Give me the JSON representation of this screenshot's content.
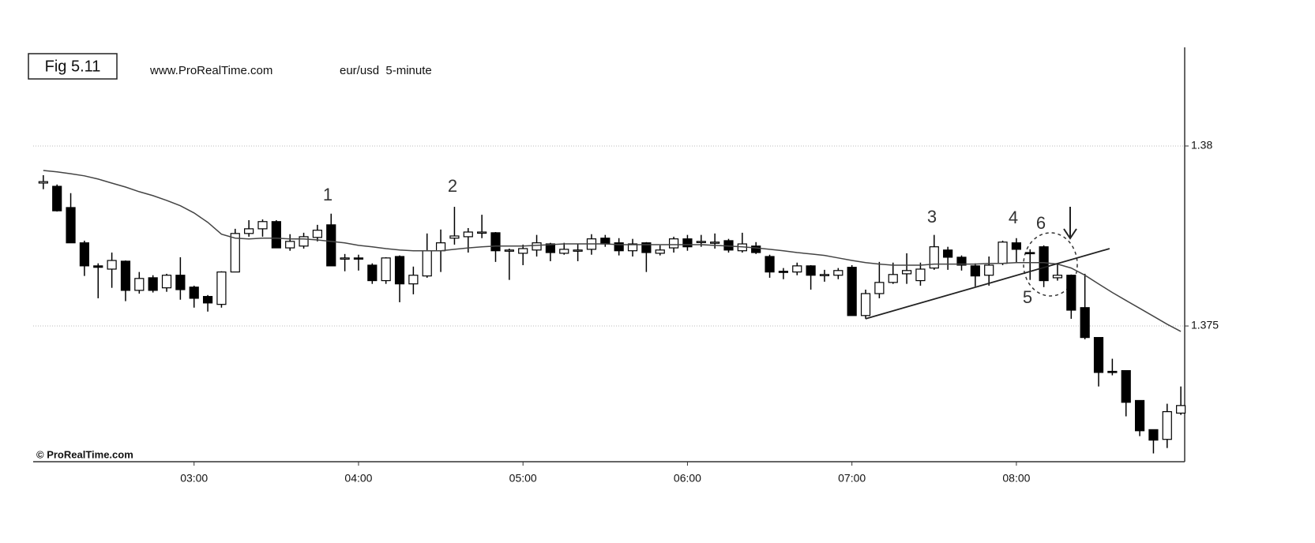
{
  "chart_data": {
    "type": "candlestick",
    "figure_label": "Fig 5.11",
    "source": "www.ProRealTime.com",
    "title": "eur/usd  5-minute",
    "copyright": "© ProRealTime.com",
    "x": [
      125,
      130,
      135,
      140,
      145,
      150,
      155,
      160,
      165,
      170,
      175,
      180,
      185,
      190,
      195,
      200,
      205,
      210,
      215,
      220,
      225,
      230,
      235,
      240,
      245,
      250,
      255,
      260,
      265,
      270,
      275,
      280,
      285,
      290,
      295,
      300,
      305,
      310,
      315,
      320,
      325,
      330,
      335,
      340,
      345,
      350,
      355,
      360,
      365,
      370,
      375,
      380,
      385,
      390,
      395,
      400,
      405,
      410,
      415,
      420,
      425,
      430,
      435,
      440,
      445,
      450,
      455,
      460,
      465,
      470,
      475,
      480,
      485,
      490,
      495,
      500,
      505,
      510,
      515,
      520,
      525,
      530,
      535,
      540
    ],
    "open": [
      1.37897,
      1.37888,
      1.37829,
      1.37731,
      1.37667,
      1.37658,
      1.3768,
      1.37599,
      1.37634,
      1.37606,
      1.37641,
      1.37608,
      1.37582,
      1.3756,
      1.3765,
      1.37757,
      1.3777,
      1.3779,
      1.37717,
      1.37722,
      1.37746,
      1.37781,
      1.37687,
      1.37689,
      1.37669,
      1.37626,
      1.37693,
      1.37617,
      1.37639,
      1.37709,
      1.37744,
      1.37748,
      1.37759,
      1.37759,
      1.37709,
      1.37702,
      1.37711,
      1.37728,
      1.37702,
      1.37709,
      1.37713,
      1.37744,
      1.37731,
      1.37709,
      1.37731,
      1.37702,
      1.37717,
      1.37742,
      1.37733,
      1.37731,
      1.37737,
      1.37709,
      1.37722,
      1.37693,
      1.37652,
      1.3765,
      1.37667,
      1.37641,
      1.37641,
      1.37663,
      1.37529,
      1.3759,
      1.37621,
      1.37645,
      1.37626,
      1.37661,
      1.37711,
      1.37691,
      1.37667,
      1.37641,
      1.37674,
      1.37731,
      1.37704,
      1.3772,
      1.37634,
      1.37641,
      1.37551,
      1.37468,
      1.37374,
      1.37376,
      1.37293,
      1.37212,
      1.37185,
      1.37258
    ],
    "high": [
      1.37919,
      1.37893,
      1.37869,
      1.37737,
      1.37674,
      1.37704,
      1.37682,
      1.3765,
      1.37641,
      1.37645,
      1.37691,
      1.37612,
      1.37586,
      1.37652,
      1.3777,
      1.37794,
      1.37796,
      1.37794,
      1.37755,
      1.37759,
      1.37781,
      1.37812,
      1.377,
      1.37698,
      1.37674,
      1.37691,
      1.37696,
      1.37665,
      1.37757,
      1.37768,
      1.37831,
      1.37772,
      1.37809,
      1.37761,
      1.37715,
      1.37726,
      1.37753,
      1.37731,
      1.37731,
      1.37728,
      1.37755,
      1.37753,
      1.37744,
      1.37742,
      1.37733,
      1.37724,
      1.37748,
      1.37753,
      1.37753,
      1.37757,
      1.37742,
      1.37759,
      1.37733,
      1.37698,
      1.37661,
      1.37676,
      1.37669,
      1.37656,
      1.37661,
      1.37669,
      1.37601,
      1.37678,
      1.37676,
      1.37702,
      1.37676,
      1.37753,
      1.3772,
      1.37696,
      1.37674,
      1.37693,
      1.37737,
      1.37744,
      1.37713,
      1.37724,
      1.37674,
      1.37643,
      1.37645,
      1.37468,
      1.37409,
      1.37376,
      1.37293,
      1.37212,
      1.37284,
      1.37332
    ],
    "low": [
      1.3788,
      1.37818,
      1.37731,
      1.37639,
      1.37577,
      1.37606,
      1.37569,
      1.3759,
      1.37593,
      1.37595,
      1.37573,
      1.37551,
      1.3754,
      1.37551,
      1.3765,
      1.37748,
      1.37748,
      1.37717,
      1.37709,
      1.37715,
      1.37735,
      1.37667,
      1.37652,
      1.37654,
      1.37617,
      1.37617,
      1.37566,
      1.37588,
      1.37634,
      1.3765,
      1.37726,
      1.37704,
      1.37744,
      1.37678,
      1.37628,
      1.37669,
      1.37693,
      1.3768,
      1.37698,
      1.3768,
      1.37698,
      1.3772,
      1.37696,
      1.37693,
      1.3765,
      1.37696,
      1.37704,
      1.37709,
      1.3772,
      1.37715,
      1.37704,
      1.37704,
      1.377,
      1.37634,
      1.3763,
      1.37641,
      1.37601,
      1.37623,
      1.3763,
      1.37529,
      1.3752,
      1.37577,
      1.37617,
      1.37617,
      1.37612,
      1.37656,
      1.37656,
      1.37654,
      1.3761,
      1.37612,
      1.37669,
      1.37676,
      1.37628,
      1.37608,
      1.37626,
      1.3752,
      1.37463,
      1.37332,
      1.37363,
      1.37249,
      1.37194,
      1.37146,
      1.37161,
      1.37253
    ],
    "close": [
      1.37901,
      1.3782,
      1.37731,
      1.37667,
      1.37663,
      1.37682,
      1.37599,
      1.37632,
      1.37599,
      1.37641,
      1.37601,
      1.37577,
      1.37564,
      1.3765,
      1.37757,
      1.3777,
      1.3779,
      1.37717,
      1.37735,
      1.37748,
      1.37766,
      1.37667,
      1.37689,
      1.37687,
      1.37626,
      1.37689,
      1.37617,
      1.37641,
      1.37709,
      1.37731,
      1.3775,
      1.37761,
      1.37761,
      1.37709,
      1.37711,
      1.37715,
      1.37731,
      1.37704,
      1.37713,
      1.37711,
      1.37742,
      1.37728,
      1.37709,
      1.37728,
      1.37704,
      1.37711,
      1.37742,
      1.3772,
      1.37735,
      1.37733,
      1.37711,
      1.37728,
      1.37704,
      1.3765,
      1.3765,
      1.37667,
      1.37641,
      1.37643,
      1.37654,
      1.37529,
      1.3759,
      1.37621,
      1.37643,
      1.37654,
      1.37658,
      1.3772,
      1.37691,
      1.37669,
      1.37639,
      1.37669,
      1.37733,
      1.37713,
      1.37702,
      1.37626,
      1.37641,
      1.37544,
      1.37468,
      1.37371,
      1.37371,
      1.37288,
      1.37209,
      1.37183,
      1.37262,
      1.37279
    ],
    "up_color": "#ffffff",
    "down_color": "#000000",
    "moving_average": {
      "color": "#444444",
      "values": [
        1.37932,
        1.37928,
        1.37923,
        1.37917,
        1.37908,
        1.37897,
        1.37886,
        1.37873,
        1.37862,
        1.37849,
        1.37834,
        1.37814,
        1.37788,
        1.37755,
        1.37744,
        1.37742,
        1.37744,
        1.37744,
        1.37742,
        1.37742,
        1.37739,
        1.37735,
        1.37731,
        1.37724,
        1.3772,
        1.37715,
        1.37711,
        1.37709,
        1.37709,
        1.37709,
        1.37713,
        1.37717,
        1.3772,
        1.37722,
        1.37722,
        1.37722,
        1.37724,
        1.37726,
        1.37728,
        1.37728,
        1.37728,
        1.37728,
        1.37726,
        1.37726,
        1.37726,
        1.37726,
        1.37726,
        1.37726,
        1.37726,
        1.37724,
        1.37722,
        1.3772,
        1.37717,
        1.37713,
        1.37709,
        1.37704,
        1.377,
        1.37696,
        1.37689,
        1.37682,
        1.37676,
        1.37672,
        1.37669,
        1.37669,
        1.37669,
        1.37672,
        1.37672,
        1.37672,
        1.37672,
        1.37674,
        1.37674,
        1.37676,
        1.37676,
        1.37676,
        1.37672,
        1.37661,
        1.37641,
        1.37617,
        1.37593,
        1.37571,
        1.37549,
        1.37527,
        1.37505,
        1.37485
      ]
    },
    "trendline": {
      "x": [
        425,
        514
      ],
      "y": [
        1.3752,
        1.37715
      ]
    },
    "annotations": [
      "1",
      "2",
      "3",
      "4",
      "5",
      "6"
    ],
    "xlim": [
      121.3,
      541.4
    ],
    "xticks": [
      {
        "value": 180,
        "label": "03:00"
      },
      {
        "value": 240,
        "label": "04:00"
      },
      {
        "value": 300,
        "label": "05:00"
      },
      {
        "value": 360,
        "label": "06:00"
      },
      {
        "value": 420,
        "label": "07:00"
      },
      {
        "value": 480,
        "label": "08:00"
      }
    ],
    "ylim": [
      1.37123,
      1.38274
    ],
    "yticks": [
      1.375,
      1.38
    ],
    "grid": true
  }
}
